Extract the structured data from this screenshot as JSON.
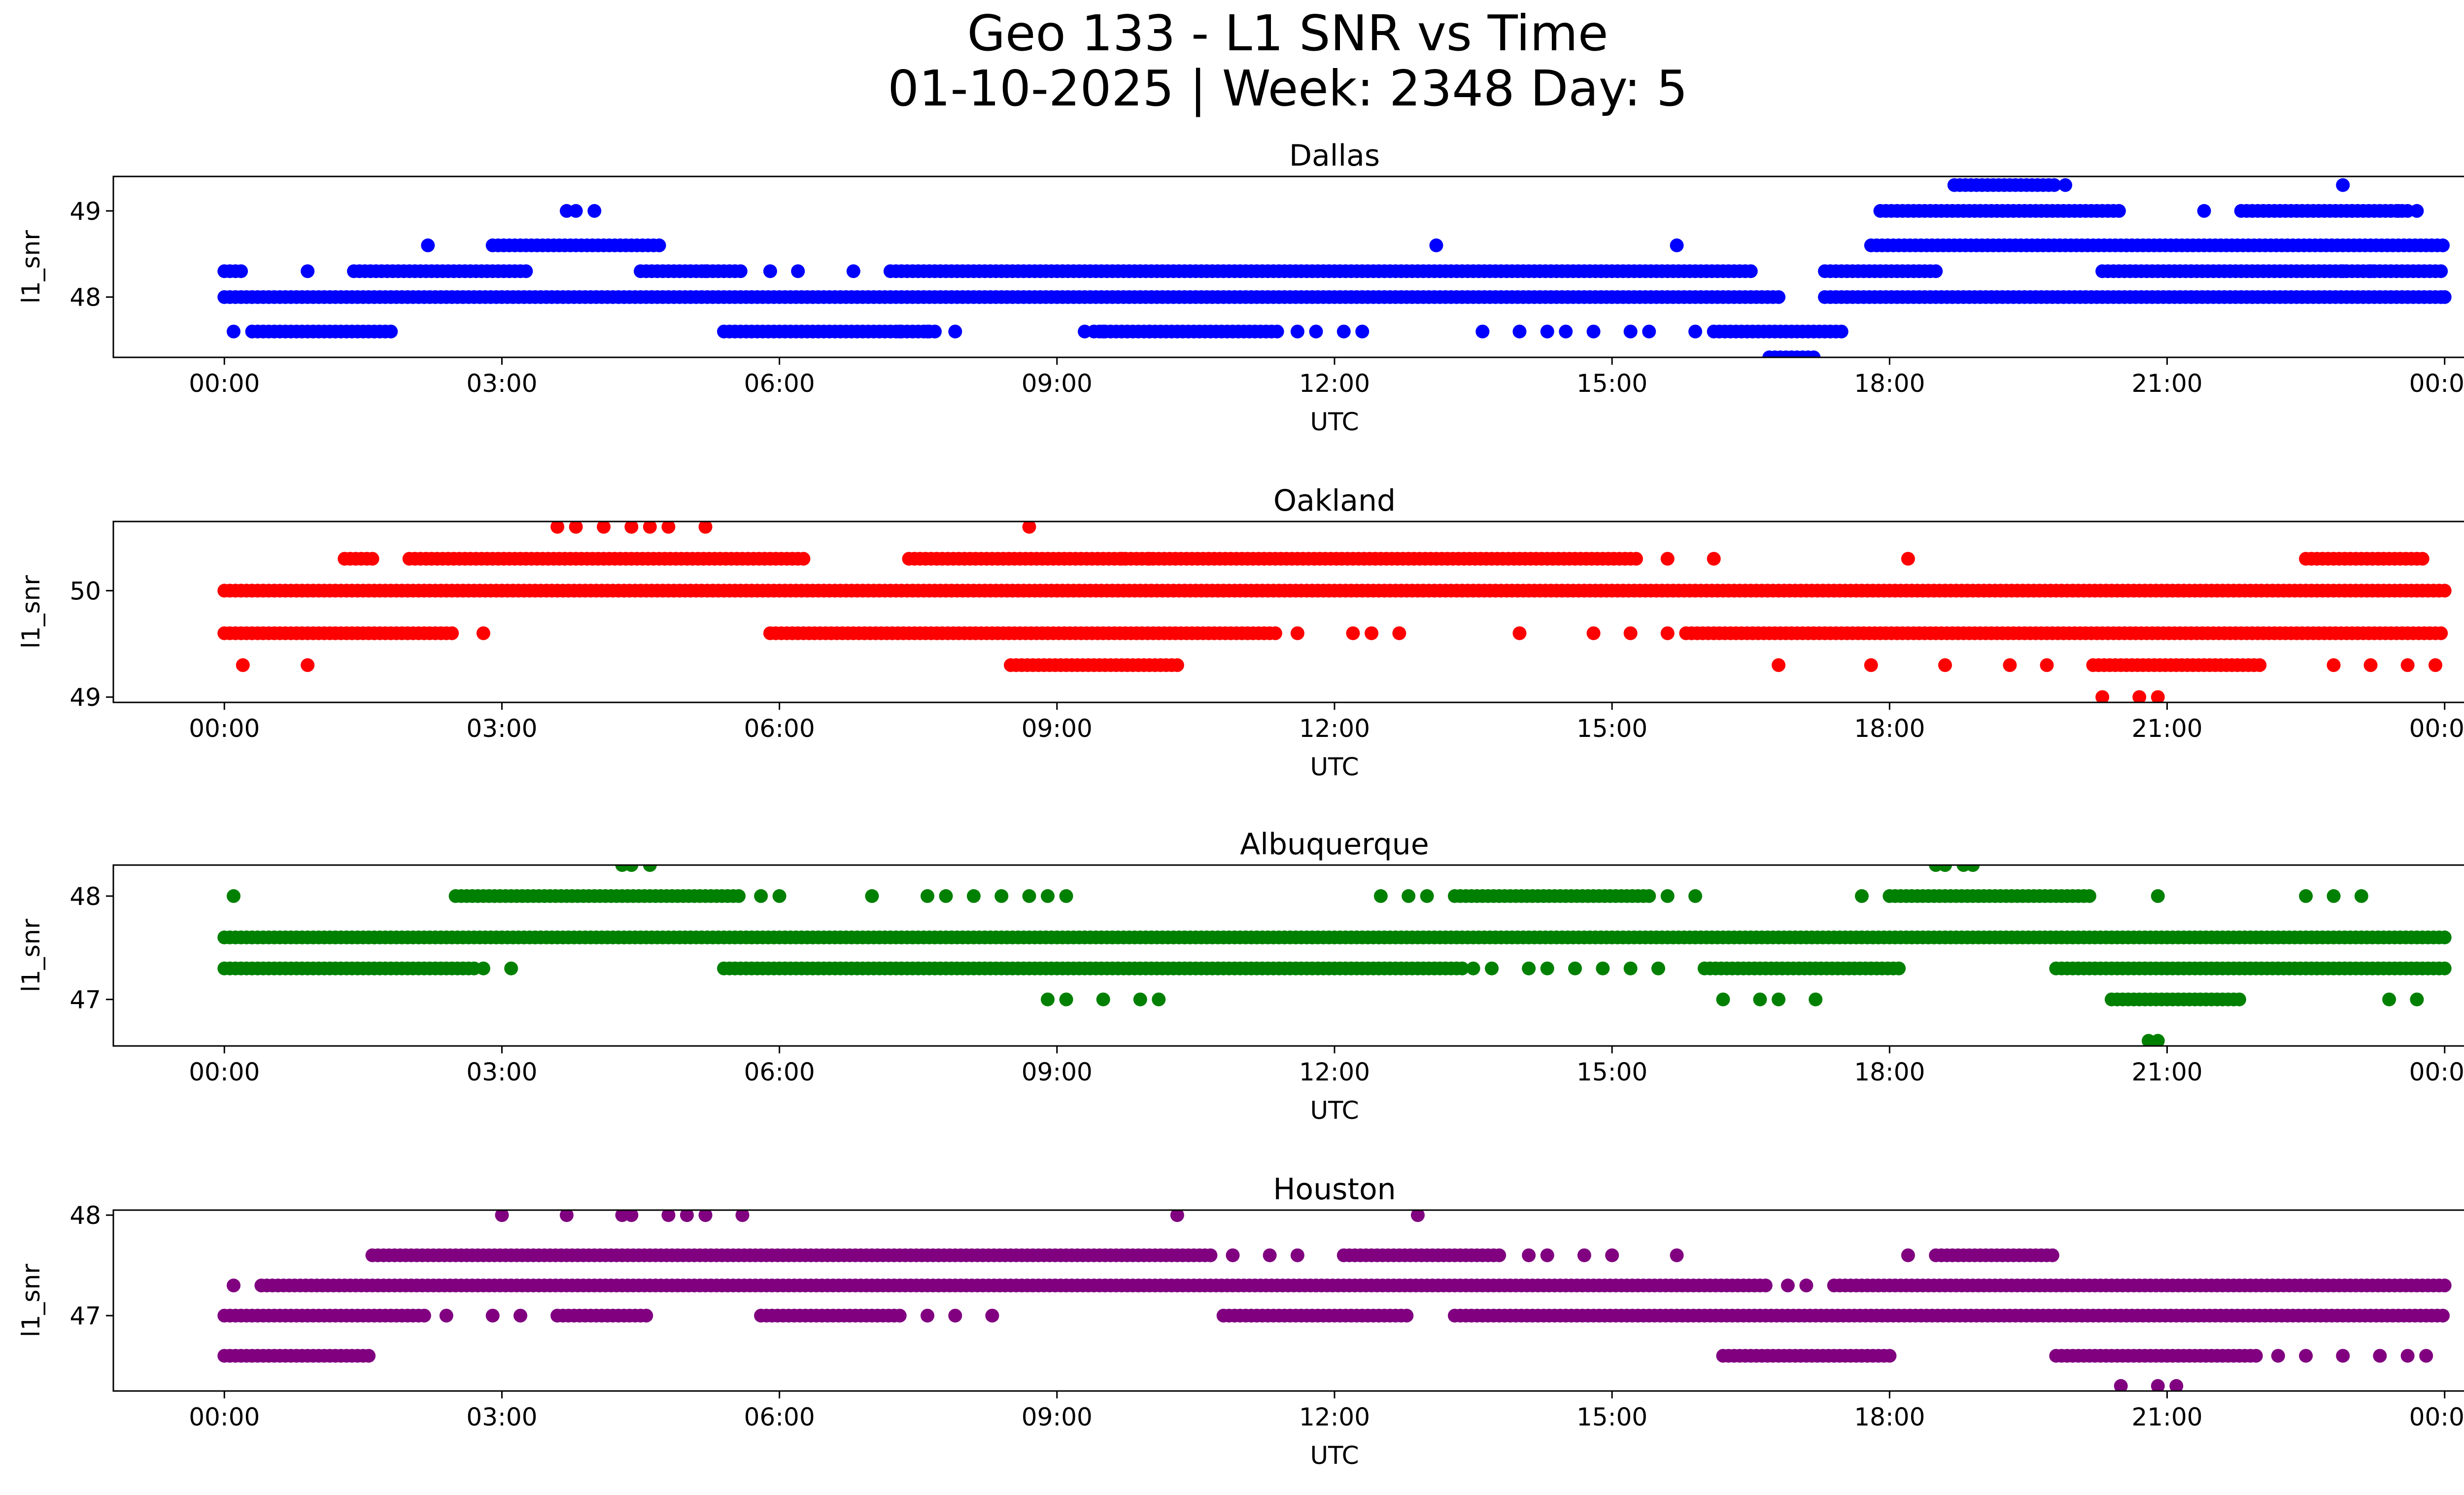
{
  "figure": {
    "title_line1": "Geo 133 - L1 SNR vs Time",
    "title_line2": "01-10-2025 | Week: 2348 Day: 5"
  },
  "chart_data": [
    {
      "type": "scatter",
      "title": "Dallas",
      "xlabel": "UTC",
      "ylabel": "l1_snr",
      "color": "#0000ff",
      "xlim_hours": [
        -1.2,
        25.2
      ],
      "ylim": [
        47.3,
        49.4
      ],
      "yticks": [
        48,
        49
      ],
      "ytick_labels": [
        "48",
        "49"
      ],
      "xtick_hours": [
        0,
        3,
        6,
        9,
        12,
        15,
        18,
        21,
        24
      ],
      "xtick_labels": [
        "00:00",
        "03:00",
        "06:00",
        "09:00",
        "12:00",
        "15:00",
        "18:00",
        "21:00",
        "00:00"
      ],
      "density": [
        {
          "y": 48.0,
          "start": 0,
          "end": 16.8
        },
        {
          "y": 48.0,
          "start": 17.3,
          "end": 24
        },
        {
          "y": 48.3,
          "start": 0,
          "end": 0.2
        },
        {
          "y": 48.3,
          "start": 1.4,
          "end": 3.3
        },
        {
          "y": 48.3,
          "start": 4.5,
          "end": 5.6
        },
        {
          "y": 48.3,
          "start": 7.2,
          "end": 16.5
        },
        {
          "y": 48.3,
          "start": 17.3,
          "end": 18.5
        },
        {
          "y": 48.3,
          "start": 20.3,
          "end": 24
        },
        {
          "y": 47.6,
          "start": 0.3,
          "end": 1.8
        },
        {
          "y": 47.6,
          "start": 5.4,
          "end": 7.7
        },
        {
          "y": 47.6,
          "start": 9.4,
          "end": 11.4
        },
        {
          "y": 47.6,
          "start": 16.1,
          "end": 17.5
        },
        {
          "y": 47.3,
          "start": 16.7,
          "end": 17.2
        },
        {
          "y": 48.6,
          "start": 2.9,
          "end": 4.7
        },
        {
          "y": 48.6,
          "start": 17.8,
          "end": 24
        },
        {
          "y": 49.0,
          "start": 17.9,
          "end": 20.5
        },
        {
          "y": 49.0,
          "start": 21.8,
          "end": 23.6
        },
        {
          "y": 49.3,
          "start": 18.7,
          "end": 19.8
        }
      ],
      "points": [
        [
          0.1,
          47.6
        ],
        [
          0.9,
          48.3
        ],
        [
          2.2,
          48.6
        ],
        [
          3.7,
          49.0
        ],
        [
          3.8,
          49.0
        ],
        [
          4.0,
          49.0
        ],
        [
          5.2,
          48.3
        ],
        [
          5.9,
          48.3
        ],
        [
          6.2,
          48.3
        ],
        [
          6.8,
          48.3
        ],
        [
          7.3,
          47.6
        ],
        [
          7.6,
          47.6
        ],
        [
          7.9,
          47.6
        ],
        [
          9.3,
          47.6
        ],
        [
          9.5,
          47.6
        ],
        [
          10.0,
          47.6
        ],
        [
          11.6,
          47.6
        ],
        [
          11.8,
          47.6
        ],
        [
          12.1,
          47.6
        ],
        [
          12.3,
          47.6
        ],
        [
          13.1,
          48.6
        ],
        [
          13.6,
          47.6
        ],
        [
          14.0,
          47.6
        ],
        [
          14.3,
          47.6
        ],
        [
          14.5,
          47.6
        ],
        [
          14.8,
          47.6
        ],
        [
          15.2,
          47.6
        ],
        [
          15.4,
          47.6
        ],
        [
          15.7,
          48.6
        ],
        [
          15.9,
          47.6
        ],
        [
          19.9,
          49.3
        ],
        [
          21.4,
          49.0
        ],
        [
          22.9,
          49.3
        ],
        [
          22.9,
          48.3
        ],
        [
          23.0,
          49.0
        ],
        [
          23.2,
          48.3
        ],
        [
          23.5,
          49.0
        ],
        [
          23.7,
          49.0
        ],
        [
          24.0,
          48.0
        ]
      ]
    },
    {
      "type": "scatter",
      "title": "Oakland",
      "xlabel": "UTC",
      "ylabel": "l1_snr",
      "color": "#ff0000",
      "xlim_hours": [
        -1.2,
        25.2
      ],
      "ylim": [
        48.95,
        50.65
      ],
      "yticks": [
        49,
        50
      ],
      "ytick_labels": [
        "49",
        "50"
      ],
      "xtick_hours": [
        0,
        3,
        6,
        9,
        12,
        15,
        18,
        21,
        24
      ],
      "xtick_labels": [
        "00:00",
        "03:00",
        "06:00",
        "09:00",
        "12:00",
        "15:00",
        "18:00",
        "21:00",
        "00:00"
      ],
      "density": [
        {
          "y": 50.0,
          "start": 0,
          "end": 24
        },
        {
          "y": 49.6,
          "start": 0,
          "end": 2.5
        },
        {
          "y": 49.6,
          "start": 5.9,
          "end": 11.4
        },
        {
          "y": 49.6,
          "start": 15.8,
          "end": 24
        },
        {
          "y": 50.3,
          "start": 1.3,
          "end": 1.6
        },
        {
          "y": 50.3,
          "start": 2.0,
          "end": 6.3
        },
        {
          "y": 50.3,
          "start": 7.4,
          "end": 15.3
        },
        {
          "y": 50.3,
          "start": 22.5,
          "end": 23.8
        },
        {
          "y": 49.3,
          "start": 8.5,
          "end": 10.3
        },
        {
          "y": 49.3,
          "start": 20.2,
          "end": 22.0
        }
      ],
      "points": [
        [
          0.2,
          49.3
        ],
        [
          0.9,
          49.3
        ],
        [
          2.8,
          49.6
        ],
        [
          3.6,
          50.6
        ],
        [
          3.8,
          50.6
        ],
        [
          4.1,
          50.6
        ],
        [
          4.4,
          50.6
        ],
        [
          4.6,
          50.6
        ],
        [
          4.8,
          50.6
        ],
        [
          5.2,
          50.6
        ],
        [
          8.7,
          50.6
        ],
        [
          9.7,
          50.3
        ],
        [
          10.0,
          50.3
        ],
        [
          11.6,
          49.6
        ],
        [
          12.2,
          49.6
        ],
        [
          12.4,
          49.6
        ],
        [
          12.7,
          49.6
        ],
        [
          14.0,
          49.6
        ],
        [
          14.8,
          49.6
        ],
        [
          15.2,
          49.6
        ],
        [
          15.6,
          49.6
        ],
        [
          15.6,
          50.3
        ],
        [
          16.1,
          50.3
        ],
        [
          16.8,
          49.3
        ],
        [
          17.8,
          49.3
        ],
        [
          18.2,
          50.3
        ],
        [
          18.6,
          49.3
        ],
        [
          19.3,
          49.3
        ],
        [
          19.7,
          49.3
        ],
        [
          20.3,
          49.0
        ],
        [
          20.7,
          49.0
        ],
        [
          20.9,
          49.0
        ],
        [
          22.8,
          49.3
        ],
        [
          23.2,
          49.3
        ],
        [
          23.6,
          49.3
        ],
        [
          23.9,
          49.3
        ]
      ]
    },
    {
      "type": "scatter",
      "title": "Albuquerque",
      "xlabel": "UTC",
      "ylabel": "l1_snr",
      "color": "#008000",
      "xlim_hours": [
        -1.2,
        25.2
      ],
      "ylim": [
        46.55,
        48.3
      ],
      "yticks": [
        47,
        48
      ],
      "ytick_labels": [
        "47",
        "48"
      ],
      "xtick_hours": [
        0,
        3,
        6,
        9,
        12,
        15,
        18,
        21,
        24
      ],
      "xtick_labels": [
        "00:00",
        "03:00",
        "06:00",
        "09:00",
        "12:00",
        "15:00",
        "18:00",
        "21:00",
        "00:00"
      ],
      "density": [
        {
          "y": 47.6,
          "start": 0,
          "end": 24
        },
        {
          "y": 47.3,
          "start": 0,
          "end": 2.7
        },
        {
          "y": 47.3,
          "start": 5.4,
          "end": 13.4
        },
        {
          "y": 47.3,
          "start": 16.0,
          "end": 18.1
        },
        {
          "y": 47.3,
          "start": 19.8,
          "end": 24
        },
        {
          "y": 48.0,
          "start": 2.5,
          "end": 5.6
        },
        {
          "y": 48.0,
          "start": 13.3,
          "end": 15.4
        },
        {
          "y": 48.0,
          "start": 18.0,
          "end": 20.2
        },
        {
          "y": 47.0,
          "start": 20.4,
          "end": 21.8
        }
      ],
      "points": [
        [
          0.1,
          48.0
        ],
        [
          2.8,
          47.3
        ],
        [
          3.1,
          47.3
        ],
        [
          4.3,
          48.3
        ],
        [
          4.4,
          48.3
        ],
        [
          4.6,
          48.3
        ],
        [
          5.8,
          48.0
        ],
        [
          6.0,
          48.0
        ],
        [
          7.0,
          48.0
        ],
        [
          7.6,
          48.0
        ],
        [
          7.8,
          48.0
        ],
        [
          8.1,
          48.0
        ],
        [
          8.4,
          48.0
        ],
        [
          8.7,
          48.0
        ],
        [
          8.9,
          48.0
        ],
        [
          9.1,
          48.0
        ],
        [
          8.9,
          47.0
        ],
        [
          9.1,
          47.0
        ],
        [
          9.5,
          47.0
        ],
        [
          9.9,
          47.0
        ],
        [
          10.1,
          47.0
        ],
        [
          12.5,
          48.0
        ],
        [
          12.8,
          48.0
        ],
        [
          13.0,
          48.0
        ],
        [
          13.5,
          47.3
        ],
        [
          13.7,
          47.3
        ],
        [
          14.1,
          47.3
        ],
        [
          14.3,
          47.3
        ],
        [
          14.6,
          47.3
        ],
        [
          14.9,
          47.3
        ],
        [
          15.2,
          47.3
        ],
        [
          15.5,
          47.3
        ],
        [
          15.6,
          48.0
        ],
        [
          15.9,
          48.0
        ],
        [
          16.2,
          47.0
        ],
        [
          16.6,
          47.0
        ],
        [
          16.8,
          47.0
        ],
        [
          17.2,
          47.0
        ],
        [
          17.7,
          48.0
        ],
        [
          18.5,
          48.3
        ],
        [
          18.6,
          48.3
        ],
        [
          18.8,
          48.3
        ],
        [
          18.9,
          48.3
        ],
        [
          20.9,
          48.0
        ],
        [
          20.8,
          46.6
        ],
        [
          20.9,
          46.6
        ],
        [
          22.5,
          48.0
        ],
        [
          22.8,
          48.0
        ],
        [
          23.1,
          48.0
        ],
        [
          23.4,
          47.0
        ],
        [
          23.7,
          47.0
        ]
      ]
    },
    {
      "type": "scatter",
      "title": "Houston",
      "xlabel": "UTC",
      "ylabel": "l1_snr",
      "color": "#800080",
      "xlim_hours": [
        -1.2,
        25.2
      ],
      "ylim": [
        46.25,
        48.05
      ],
      "yticks": [
        47,
        48
      ],
      "ytick_labels": [
        "47",
        "48"
      ],
      "xtick_hours": [
        0,
        3,
        6,
        9,
        12,
        15,
        18,
        21,
        24
      ],
      "xtick_labels": [
        "00:00",
        "03:00",
        "06:00",
        "09:00",
        "12:00",
        "15:00",
        "18:00",
        "21:00",
        "00:00"
      ],
      "density": [
        {
          "y": 47.3,
          "start": 0.4,
          "end": 16.7
        },
        {
          "y": 47.3,
          "start": 17.4,
          "end": 24
        },
        {
          "y": 47.0,
          "start": 0,
          "end": 2.2
        },
        {
          "y": 47.0,
          "start": 3.6,
          "end": 4.6
        },
        {
          "y": 47.0,
          "start": 5.8,
          "end": 7.3
        },
        {
          "y": 47.0,
          "start": 10.8,
          "end": 12.8
        },
        {
          "y": 47.0,
          "start": 13.3,
          "end": 24
        },
        {
          "y": 47.6,
          "start": 1.6,
          "end": 10.7
        },
        {
          "y": 47.6,
          "start": 12.1,
          "end": 13.8
        },
        {
          "y": 47.6,
          "start": 18.5,
          "end": 19.8
        },
        {
          "y": 46.6,
          "start": 0,
          "end": 1.6
        },
        {
          "y": 46.6,
          "start": 16.2,
          "end": 18.0
        },
        {
          "y": 46.6,
          "start": 19.8,
          "end": 22.0
        }
      ],
      "points": [
        [
          0.1,
          47.3
        ],
        [
          2.4,
          47.0
        ],
        [
          2.9,
          47.0
        ],
        [
          3.2,
          47.0
        ],
        [
          3.0,
          48.0
        ],
        [
          3.7,
          48.0
        ],
        [
          4.3,
          48.0
        ],
        [
          4.4,
          48.0
        ],
        [
          4.8,
          48.0
        ],
        [
          5.0,
          48.0
        ],
        [
          5.2,
          48.0
        ],
        [
          5.6,
          48.0
        ],
        [
          7.6,
          47.0
        ],
        [
          7.9,
          47.0
        ],
        [
          8.3,
          47.0
        ],
        [
          10.3,
          48.0
        ],
        [
          10.9,
          47.6
        ],
        [
          11.3,
          47.6
        ],
        [
          11.6,
          47.6
        ],
        [
          12.9,
          48.0
        ],
        [
          14.1,
          47.6
        ],
        [
          14.3,
          47.6
        ],
        [
          14.7,
          47.6
        ],
        [
          15.0,
          47.6
        ],
        [
          15.7,
          47.6
        ],
        [
          16.9,
          47.3
        ],
        [
          17.1,
          47.3
        ],
        [
          18.2,
          47.6
        ],
        [
          20.5,
          46.3
        ],
        [
          20.9,
          46.3
        ],
        [
          21.1,
          46.3
        ],
        [
          22.2,
          46.6
        ],
        [
          22.5,
          46.6
        ],
        [
          22.9,
          46.6
        ],
        [
          23.3,
          46.6
        ],
        [
          23.6,
          46.6
        ],
        [
          23.8,
          46.6
        ]
      ]
    }
  ]
}
